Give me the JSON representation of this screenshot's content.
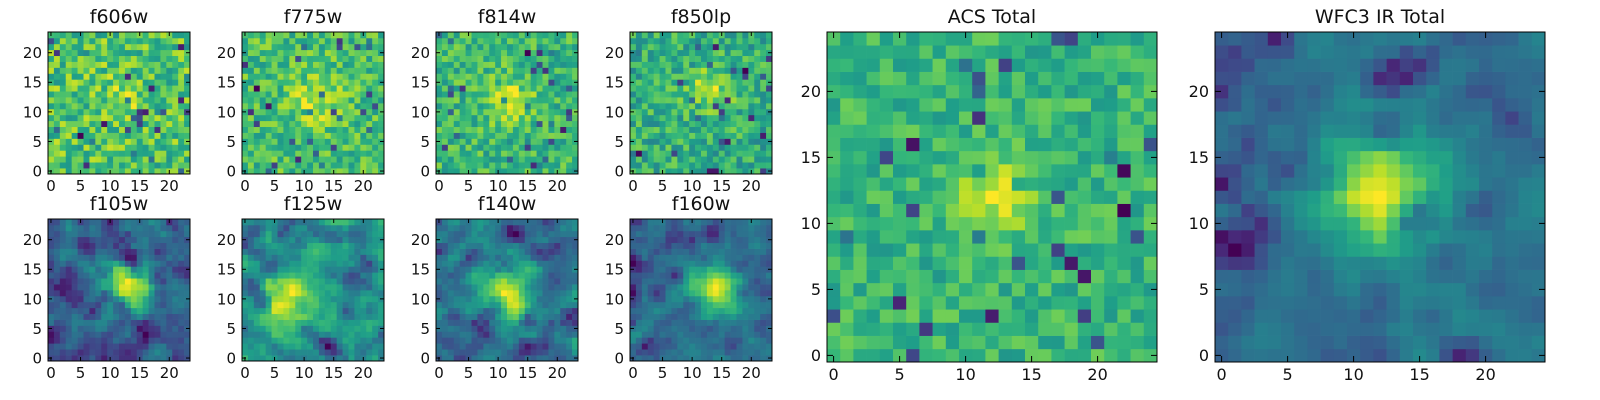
{
  "chart_data": [
    {
      "id": "f606w",
      "type": "heatmap",
      "title": "f606w",
      "size": "small",
      "grid_size": 24,
      "xlim": [
        0,
        24
      ],
      "ylim": [
        0,
        24
      ],
      "xticks": [
        0,
        5,
        10,
        15,
        20
      ],
      "xtick_labels": [
        "0",
        "5",
        "10",
        "15",
        "20"
      ],
      "yticks": [
        0,
        5,
        10,
        15,
        20
      ],
      "ytick_labels": [
        "0",
        "5",
        "10",
        "15",
        "20"
      ],
      "colormap": "viridis",
      "source_center": [
        12,
        12
      ],
      "source_amplitude": 0.12,
      "source_width": 3.0,
      "smoothness": 0,
      "noise_level": 0.22,
      "seed": 11
    },
    {
      "id": "f775w",
      "type": "heatmap",
      "title": "f775w",
      "size": "small",
      "grid_size": 24,
      "xlim": [
        0,
        24
      ],
      "ylim": [
        0,
        24
      ],
      "xticks": [
        0,
        5,
        10,
        15,
        20
      ],
      "xtick_labels": [
        "0",
        "5",
        "10",
        "15",
        "20"
      ],
      "yticks": [
        0,
        5,
        10,
        15,
        20
      ],
      "ytick_labels": [
        "0",
        "5",
        "10",
        "15",
        "20"
      ],
      "colormap": "viridis",
      "source_center": [
        12,
        12
      ],
      "source_amplitude": 0.25,
      "source_width": 3.0,
      "smoothness": 0,
      "noise_level": 0.2,
      "seed": 23
    },
    {
      "id": "f814w",
      "type": "heatmap",
      "title": "f814w",
      "size": "small",
      "grid_size": 24,
      "xlim": [
        0,
        24
      ],
      "ylim": [
        0,
        24
      ],
      "xticks": [
        0,
        5,
        10,
        15,
        20
      ],
      "xtick_labels": [
        "0",
        "5",
        "10",
        "15",
        "20"
      ],
      "yticks": [
        0,
        5,
        10,
        15,
        20
      ],
      "ytick_labels": [
        "0",
        "5",
        "10",
        "15",
        "20"
      ],
      "colormap": "viridis",
      "source_center": [
        12,
        12
      ],
      "source_amplitude": 0.3,
      "source_width": 2.8,
      "smoothness": 0,
      "noise_level": 0.2,
      "seed": 37
    },
    {
      "id": "f850lp",
      "type": "heatmap",
      "title": "f850lp",
      "size": "small",
      "grid_size": 24,
      "xlim": [
        0,
        24
      ],
      "ylim": [
        0,
        24
      ],
      "xticks": [
        0,
        5,
        10,
        15,
        20
      ],
      "xtick_labels": [
        "0",
        "5",
        "10",
        "15",
        "20"
      ],
      "yticks": [
        0,
        5,
        10,
        15,
        20
      ],
      "ytick_labels": [
        "0",
        "5",
        "10",
        "15",
        "20"
      ],
      "colormap": "viridis",
      "source_center": [
        13,
        14
      ],
      "source_amplitude": 0.3,
      "source_width": 2.6,
      "smoothness": 0,
      "noise_level": 0.22,
      "seed": 41
    },
    {
      "id": "f105w",
      "type": "heatmap",
      "title": "f105w",
      "size": "small",
      "grid_size": 24,
      "xlim": [
        0,
        24
      ],
      "ylim": [
        0,
        24
      ],
      "xticks": [
        0,
        5,
        10,
        15,
        20
      ],
      "xtick_labels": [
        "0",
        "5",
        "10",
        "15",
        "20"
      ],
      "yticks": [
        0,
        5,
        10,
        15,
        20
      ],
      "ytick_labels": [
        "0",
        "5",
        "10",
        "15",
        "20"
      ],
      "colormap": "viridis",
      "source_center": [
        13,
        12
      ],
      "source_amplitude": 0.35,
      "source_width": 3.0,
      "smoothness": 1,
      "noise_level": 0.2,
      "seed": 53
    },
    {
      "id": "f125w",
      "type": "heatmap",
      "title": "f125w",
      "size": "small",
      "grid_size": 24,
      "xlim": [
        0,
        24
      ],
      "ylim": [
        0,
        24
      ],
      "xticks": [
        0,
        5,
        10,
        15,
        20
      ],
      "xtick_labels": [
        "0",
        "5",
        "10",
        "15",
        "20"
      ],
      "yticks": [
        0,
        5,
        10,
        15,
        20
      ],
      "ytick_labels": [
        "0",
        "5",
        "10",
        "15",
        "20"
      ],
      "colormap": "viridis",
      "source_center": [
        8,
        10
      ],
      "source_amplitude": 0.3,
      "source_width": 3.2,
      "smoothness": 1,
      "noise_level": 0.2,
      "seed": 67
    },
    {
      "id": "f140w",
      "type": "heatmap",
      "title": "f140w",
      "size": "small",
      "grid_size": 24,
      "xlim": [
        0,
        24
      ],
      "ylim": [
        0,
        24
      ],
      "xticks": [
        0,
        5,
        10,
        15,
        20
      ],
      "xtick_labels": [
        "0",
        "5",
        "10",
        "15",
        "20"
      ],
      "yticks": [
        0,
        5,
        10,
        15,
        20
      ],
      "ytick_labels": [
        "0",
        "5",
        "10",
        "15",
        "20"
      ],
      "colormap": "viridis",
      "source_center": [
        11,
        11
      ],
      "source_amplitude": 0.3,
      "source_width": 3.0,
      "smoothness": 1,
      "noise_level": 0.2,
      "seed": 79
    },
    {
      "id": "f160w",
      "type": "heatmap",
      "title": "f160w",
      "size": "small",
      "grid_size": 24,
      "xlim": [
        0,
        24
      ],
      "ylim": [
        0,
        24
      ],
      "xticks": [
        0,
        5,
        10,
        15,
        20
      ],
      "xtick_labels": [
        "0",
        "5",
        "10",
        "15",
        "20"
      ],
      "yticks": [
        0,
        5,
        10,
        15,
        20
      ],
      "ytick_labels": [
        "0",
        "5",
        "10",
        "15",
        "20"
      ],
      "colormap": "viridis",
      "source_center": [
        14,
        12
      ],
      "source_amplitude": 0.35,
      "source_width": 3.0,
      "smoothness": 1,
      "noise_level": 0.2,
      "seed": 83
    },
    {
      "id": "acs-total",
      "type": "heatmap",
      "title": "ACS Total",
      "size": "large",
      "grid_size": 25,
      "xlim": [
        0,
        25
      ],
      "ylim": [
        0,
        25
      ],
      "xticks": [
        0,
        5,
        10,
        15,
        20
      ],
      "xtick_labels": [
        "0",
        "5",
        "10",
        "15",
        "20"
      ],
      "yticks": [
        0,
        5,
        10,
        15,
        20
      ],
      "ytick_labels": [
        "0",
        "5",
        "10",
        "15",
        "20"
      ],
      "colormap": "viridis",
      "source_center": [
        12,
        12
      ],
      "source_amplitude": 0.35,
      "source_width": 2.2,
      "smoothness": 0,
      "noise_level": 0.15,
      "seed": 97
    },
    {
      "id": "wfc3-ir-total",
      "type": "heatmap",
      "title": "WFC3 IR Total",
      "size": "large",
      "grid_size": 25,
      "xlim": [
        0,
        25
      ],
      "ylim": [
        0,
        25
      ],
      "xticks": [
        0,
        5,
        10,
        15,
        20
      ],
      "xtick_labels": [
        "0",
        "5",
        "10",
        "15",
        "20"
      ],
      "yticks": [
        0,
        5,
        10,
        15,
        20
      ],
      "ytick_labels": [
        "0",
        "5",
        "10",
        "15",
        "20"
      ],
      "colormap": "viridis",
      "source_center": [
        12,
        12
      ],
      "source_amplitude": 0.4,
      "source_width": 3.2,
      "smoothness": 1,
      "noise_level": 0.12,
      "seed": 101
    }
  ]
}
